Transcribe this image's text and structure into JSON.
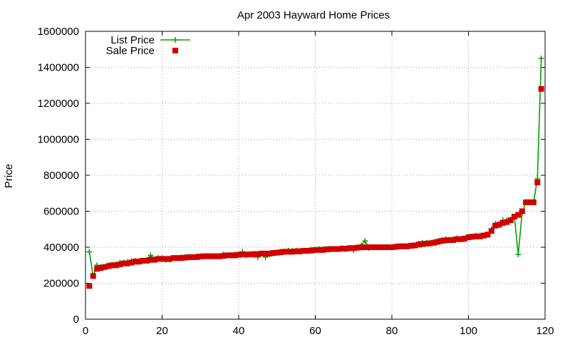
{
  "chart_data": {
    "type": "scatter",
    "title": "Apr 2003 Hayward Home Prices",
    "xlabel": "",
    "ylabel": "Price",
    "xlim": [
      0,
      120
    ],
    "ylim": [
      0,
      1600000
    ],
    "xticks": [
      "0",
      "20",
      "40",
      "60",
      "80",
      "100",
      "120"
    ],
    "yticks": [
      "0",
      "200000",
      "400000",
      "600000",
      "800000",
      "1000000",
      "1200000",
      "1400000",
      "1600000"
    ],
    "grid": true,
    "legend_position": "top-left",
    "series": [
      {
        "name": "List Price",
        "style": "line-plus",
        "color": "#00a000",
        "x": [
          1,
          2,
          3,
          4,
          5,
          6,
          7,
          8,
          9,
          10,
          11,
          12,
          13,
          14,
          15,
          16,
          17,
          18,
          19,
          20,
          21,
          22,
          23,
          24,
          25,
          26,
          27,
          28,
          29,
          30,
          31,
          32,
          33,
          34,
          35,
          36,
          37,
          38,
          39,
          40,
          41,
          42,
          43,
          44,
          45,
          46,
          47,
          48,
          49,
          50,
          51,
          52,
          53,
          54,
          55,
          56,
          57,
          58,
          59,
          60,
          61,
          62,
          63,
          64,
          65,
          66,
          67,
          68,
          69,
          70,
          71,
          72,
          73,
          74,
          75,
          76,
          77,
          78,
          79,
          80,
          81,
          82,
          83,
          84,
          85,
          86,
          87,
          88,
          89,
          90,
          91,
          92,
          93,
          94,
          95,
          96,
          97,
          98,
          99,
          100,
          101,
          102,
          103,
          104,
          105,
          106,
          107,
          108,
          109,
          110,
          111,
          112,
          113,
          114,
          115,
          116,
          117,
          118,
          119
        ],
        "y": [
          375000,
          240000,
          300000,
          290000,
          290000,
          300000,
          300000,
          305000,
          315000,
          315000,
          320000,
          325000,
          325000,
          325000,
          325000,
          330000,
          355000,
          335000,
          340000,
          340000,
          330000,
          330000,
          340000,
          340000,
          345000,
          345000,
          345000,
          345000,
          350000,
          350000,
          350000,
          350000,
          350000,
          350000,
          350000,
          360000,
          355000,
          355000,
          360000,
          360000,
          375000,
          355000,
          360000,
          355000,
          345000,
          365000,
          345000,
          360000,
          365000,
          370000,
          375000,
          375000,
          380000,
          380000,
          380000,
          375000,
          380000,
          380000,
          385000,
          385000,
          390000,
          390000,
          390000,
          390000,
          390000,
          390000,
          395000,
          390000,
          395000,
          385000,
          395000,
          410000,
          435000,
          395000,
          400000,
          400000,
          400000,
          400000,
          400000,
          400000,
          405000,
          405000,
          405000,
          405000,
          410000,
          410000,
          420000,
          425000,
          425000,
          425000,
          430000,
          435000,
          440000,
          445000,
          440000,
          445000,
          450000,
          445000,
          445000,
          460000,
          460000,
          465000,
          465000,
          465000,
          470000,
          500000,
          530000,
          530000,
          550000,
          550000,
          555000,
          565000,
          360000,
          590000,
          650000,
          650000,
          650000,
          780000,
          1450000
        ]
      },
      {
        "name": "Sale Price",
        "style": "square",
        "color": "#d00000",
        "x": [
          1,
          2,
          3,
          4,
          5,
          6,
          7,
          8,
          9,
          10,
          11,
          12,
          13,
          14,
          15,
          16,
          17,
          18,
          19,
          20,
          21,
          22,
          23,
          24,
          25,
          26,
          27,
          28,
          29,
          30,
          31,
          32,
          33,
          34,
          35,
          36,
          37,
          38,
          39,
          40,
          41,
          42,
          43,
          44,
          45,
          46,
          47,
          48,
          49,
          50,
          51,
          52,
          53,
          54,
          55,
          56,
          57,
          58,
          59,
          60,
          61,
          62,
          63,
          64,
          65,
          66,
          67,
          68,
          69,
          70,
          71,
          72,
          73,
          74,
          75,
          76,
          77,
          78,
          79,
          80,
          81,
          82,
          83,
          84,
          85,
          86,
          87,
          88,
          89,
          90,
          91,
          92,
          93,
          94,
          95,
          96,
          97,
          98,
          99,
          100,
          101,
          102,
          103,
          104,
          105,
          106,
          107,
          108,
          109,
          110,
          111,
          112,
          113,
          114,
          115,
          116,
          117,
          118,
          119
        ],
        "y": [
          185000,
          240000,
          280000,
          285000,
          290000,
          295000,
          300000,
          300000,
          305000,
          310000,
          310000,
          315000,
          320000,
          320000,
          325000,
          325000,
          330000,
          330000,
          335000,
          335000,
          335000,
          335000,
          340000,
          340000,
          340000,
          342000,
          345000,
          345000,
          345000,
          348000,
          350000,
          350000,
          350000,
          350000,
          350000,
          352000,
          355000,
          355000,
          355000,
          358000,
          360000,
          360000,
          360000,
          362000,
          362000,
          365000,
          365000,
          365000,
          368000,
          370000,
          372000,
          375000,
          375000,
          375000,
          377000,
          378000,
          380000,
          380000,
          382000,
          385000,
          385000,
          385000,
          388000,
          390000,
          390000,
          390000,
          392000,
          392000,
          395000,
          395000,
          398000,
          400000,
          400000,
          400000,
          400000,
          400000,
          400000,
          400000,
          400000,
          400000,
          402000,
          405000,
          405000,
          405000,
          408000,
          410000,
          415000,
          418000,
          420000,
          422000,
          425000,
          430000,
          435000,
          438000,
          440000,
          440000,
          445000,
          445000,
          448000,
          455000,
          458000,
          460000,
          460000,
          465000,
          470000,
          490000,
          520000,
          525000,
          535000,
          540000,
          550000,
          570000,
          580000,
          600000,
          650000,
          650000,
          650000,
          760000,
          1280000
        ]
      }
    ]
  }
}
